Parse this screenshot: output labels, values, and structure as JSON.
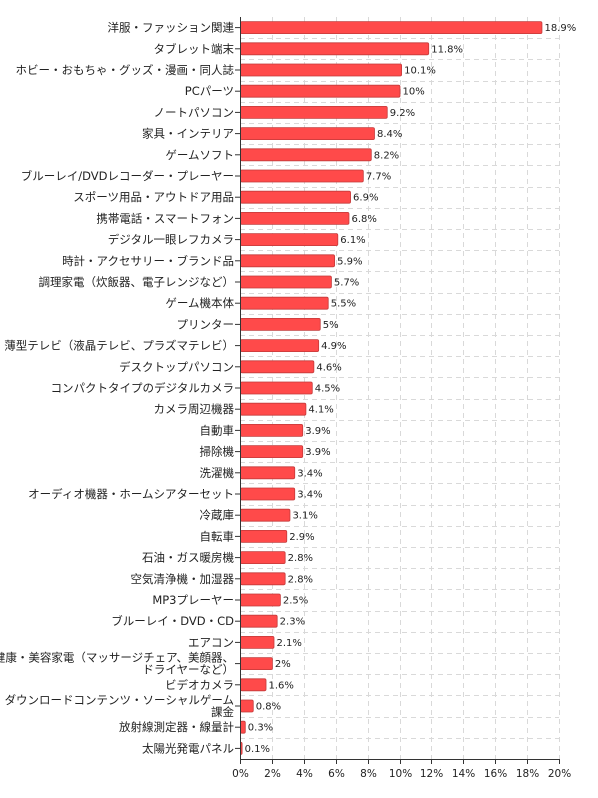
{
  "chart_data": {
    "type": "bar",
    "orientation": "horizontal",
    "categories": [
      "洋服・ファッション関連",
      "タブレット端末",
      "ホビー・おもちゃ・グッズ・漫画・同人誌",
      "PCパーツ",
      "ノートパソコン",
      "家具・インテリア",
      "ゲームソフト",
      "ブルーレイ/DVDレコーダー・プレーヤー",
      "スポーツ用品・アウトドア用品",
      "携帯電話・スマートフォン",
      "デジタル一眼レフカメラ",
      "時計・アクセサリー・ブランド品",
      "調理家電（炊飯器、電子レンジなど）",
      "ゲーム機本体",
      "プリンター",
      "薄型テレビ（液晶テレビ、プラズマテレビ）",
      "デスクトップパソコン",
      "コンパクトタイプのデジタルカメラ",
      "カメラ周辺機器",
      "自動車",
      "掃除機",
      "洗濯機",
      "オーディオ機器・ホームシアターセット",
      "冷蔵庫",
      "自転車",
      "石油・ガス暖房機",
      "空気清浄機・加湿器",
      "MP3プレーヤー",
      "ブルーレイ・DVD・CD",
      "エアコン",
      "健康・美容家電（マッサージチェア、美顔器、ドライヤーなど）",
      "ビデオカメラ",
      "ダウンロードコンテンツ・ソーシャルゲーム課金",
      "放射線測定器・線量計",
      "太陽光発電パネル"
    ],
    "values": [
      18.9,
      11.8,
      10.1,
      10,
      9.2,
      8.4,
      8.2,
      7.7,
      6.9,
      6.8,
      6.1,
      5.9,
      5.7,
      5.5,
      5,
      4.9,
      4.6,
      4.5,
      4.1,
      3.9,
      3.9,
      3.4,
      3.4,
      3.1,
      2.9,
      2.8,
      2.8,
      2.5,
      2.3,
      2.1,
      2,
      1.6,
      0.8,
      0.3,
      0.1
    ],
    "value_labels": [
      "18.9%",
      "11.8%",
      "10.1%",
      "10%",
      "9.2%",
      "8.4%",
      "8.2%",
      "7.7%",
      "6.9%",
      "6.8%",
      "6.1%",
      "5.9%",
      "5.7%",
      "5.5%",
      "5%",
      "4.9%",
      "4.6%",
      "4.5%",
      "4.1%",
      "3.9%",
      "3.9%",
      "3.4%",
      "3.4%",
      "3.1%",
      "2.9%",
      "2.8%",
      "2.8%",
      "2.5%",
      "2.3%",
      "2.1%",
      "2%",
      "1.6%",
      "0.8%",
      "0.3%",
      "0.1%"
    ],
    "xlim": [
      0,
      20
    ],
    "xticks": [
      0,
      2,
      4,
      6,
      8,
      10,
      12,
      14,
      16,
      18,
      20
    ],
    "xtick_labels": [
      "0%",
      "2%",
      "4%",
      "6%",
      "8%",
      "10%",
      "12%",
      "14%",
      "16%",
      "18%",
      "20%"
    ],
    "grid": true,
    "title": "",
    "xlabel": "",
    "ylabel": "",
    "bar_color": "#ff4a4a",
    "bar_edge_color": "#c43a3a"
  }
}
